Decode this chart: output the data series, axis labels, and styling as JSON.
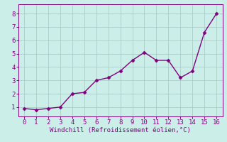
{
  "xlabel": "Windchill (Refroidissement éolien,°C)",
  "x": [
    0,
    1,
    2,
    3,
    4,
    5,
    6,
    7,
    8,
    9,
    10,
    11,
    12,
    13,
    14,
    15,
    16
  ],
  "y": [
    0.9,
    0.8,
    0.9,
    1.0,
    2.0,
    2.1,
    3.0,
    3.2,
    3.7,
    4.5,
    5.1,
    4.5,
    4.5,
    3.2,
    3.7,
    6.6,
    8.0
  ],
  "line_color": "#800080",
  "marker": "D",
  "marker_size": 2.5,
  "line_width": 1.0,
  "bg_color": "#cceee8",
  "grid_color": "#aacccc",
  "xlim": [
    -0.5,
    16.5
  ],
  "ylim": [
    0.3,
    8.7
  ],
  "xticks": [
    0,
    1,
    2,
    3,
    4,
    5,
    6,
    7,
    8,
    9,
    10,
    11,
    12,
    13,
    14,
    15,
    16
  ],
  "yticks": [
    1,
    2,
    3,
    4,
    5,
    6,
    7,
    8
  ],
  "tick_color": "#800080",
  "label_color": "#800080",
  "label_fontsize": 6.5,
  "tick_fontsize": 6.5
}
